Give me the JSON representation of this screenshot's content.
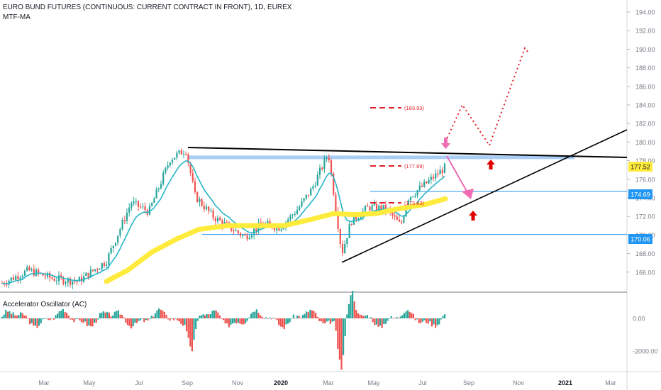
{
  "chart_data": {
    "type": "candlestick",
    "title": "EURO BUND FUTURES (CONTINUOUS: CURRENT CONTRACT IN FRONT), 1D, EUREX",
    "indicator_label": "MTF-MA",
    "oscillator_label": "Accelerator Oscillator (AC)",
    "price_axis": {
      "ticks": [
        "194.00",
        "192.00",
        "190.00",
        "188.00",
        "186.00",
        "184.00",
        "182.00",
        "180.00",
        "178.00",
        "176.00",
        "174.00",
        "172.00",
        "170.00",
        "168.00",
        "166.00"
      ],
      "range": [
        164.8,
        195.5
      ]
    },
    "oscillator_axis": {
      "ticks": [
        "0.00",
        "-2000.00"
      ]
    },
    "time_axis": {
      "labels": [
        {
          "text": "Mar",
          "bold": false
        },
        {
          "text": "May",
          "bold": false
        },
        {
          "text": "Jul",
          "bold": false
        },
        {
          "text": "Sep",
          "bold": false
        },
        {
          "text": "Nov",
          "bold": false
        },
        {
          "text": "2020",
          "bold": true
        },
        {
          "text": "Mar",
          "bold": false
        },
        {
          "text": "May",
          "bold": false
        },
        {
          "text": "Jul",
          "bold": false
        },
        {
          "text": "Sep",
          "bold": false
        },
        {
          "text": "Nov",
          "bold": false
        },
        {
          "text": "2021",
          "bold": true
        },
        {
          "text": "Mar",
          "bold": false
        }
      ]
    },
    "price_badges": [
      {
        "value": "177.52",
        "bg": "#ffeb3b",
        "fg": "#131722"
      },
      {
        "value": "174.69",
        "bg": "#2196f3",
        "fg": "#ffffff"
      },
      {
        "value": "170.06",
        "bg": "#2196f3",
        "fg": "#ffffff"
      }
    ],
    "target_labels": [
      "(183.93)",
      "(177.69)",
      "(173.83)"
    ],
    "colors": {
      "up": "#26a69a",
      "down": "#ef5350",
      "ma_fast": "#26b5c8",
      "ma_slow": "#ffeb3b",
      "resistance_band": "#a9cdf5",
      "trendline": "#000000",
      "projection": "#e0202a",
      "arrow_pink": "#f06ab4",
      "arrow_red": "#e00000",
      "level_line": "#2196f3"
    }
  }
}
